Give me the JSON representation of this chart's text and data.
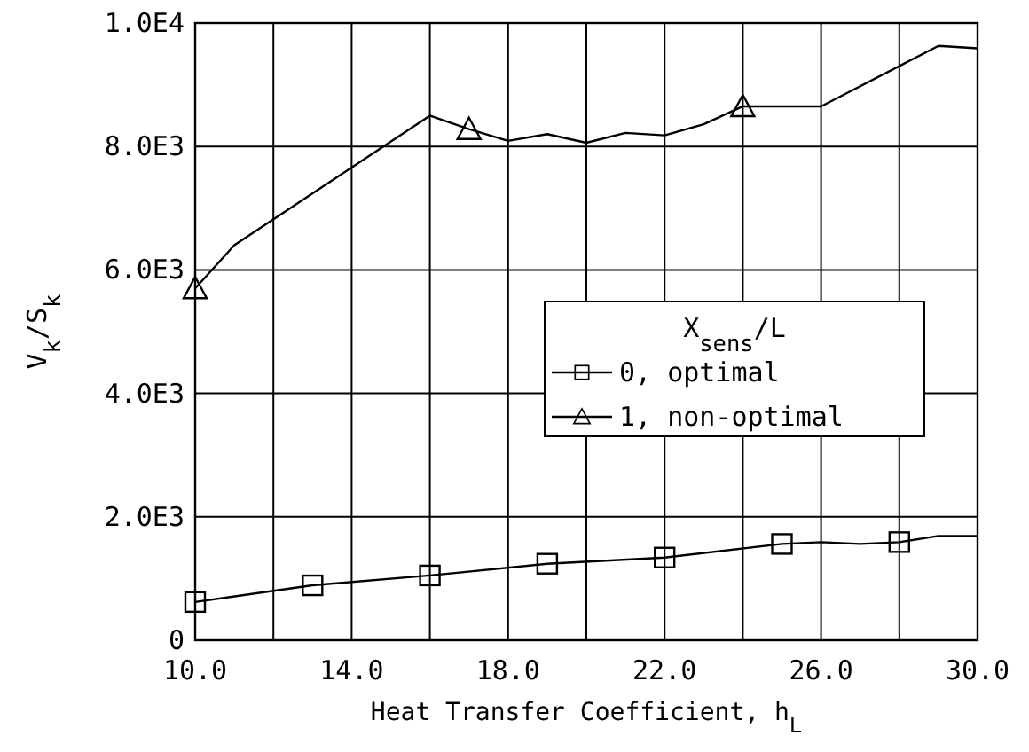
{
  "chart_data": {
    "type": "line",
    "xlabel": "Heat Transfer Coefficient, h$_{L}$",
    "ylabel": "V$_{k}$/S$_{k}$",
    "legend_title": "X$_{sens}$/L",
    "xlim": [
      10,
      30
    ],
    "xticks": [
      {
        "value": 10,
        "label": "10.0"
      },
      {
        "value": 12,
        "label": null
      },
      {
        "value": 14,
        "label": "14.0"
      },
      {
        "value": 16,
        "label": null
      },
      {
        "value": 18,
        "label": "18.0"
      },
      {
        "value": 20,
        "label": null
      },
      {
        "value": 22,
        "label": "22.0"
      },
      {
        "value": 24,
        "label": null
      },
      {
        "value": 26,
        "label": "26.0"
      },
      {
        "value": 28,
        "label": null
      },
      {
        "value": 30,
        "label": "30.0"
      }
    ],
    "ylim": [
      0,
      10000
    ],
    "yticks": [
      0,
      {
        "value": 2000,
        "label": "2.0E3"
      },
      {
        "value": 4000,
        "label": "4.0E3"
      },
      {
        "value": 6000,
        "label": "6.0E3"
      },
      {
        "value": 8000,
        "label": "8.0E3"
      },
      {
        "value": 10000,
        "label": "1.0E4"
      }
    ],
    "grid": true,
    "legend": "center right",
    "line_style": "solid",
    "series": [
      {
        "name": "0, optimal",
        "color": "#000000",
        "x": [
          10,
          13,
          16,
          19,
          22,
          25,
          26,
          27,
          28,
          29,
          30
        ],
        "values": [
          620,
          890,
          1050,
          1240,
          1340,
          1560,
          1590,
          1560,
          1590,
          1690,
          1690
        ]
      },
      {
        "name": "1, non-optimal",
        "color": "#000000",
        "x": [
          10,
          11,
          16,
          17,
          18,
          19,
          20,
          21,
          22,
          23,
          24,
          26,
          29,
          30
        ],
        "values": [
          5700,
          6400,
          8500,
          8280,
          8090,
          8200,
          8060,
          8220,
          8180,
          8360,
          8650,
          8650,
          9630,
          9590
        ]
      },
      {
        "type": "scatter",
        "marker": "square",
        "color": "#000000",
        "x": [
          10,
          13,
          16,
          19,
          22,
          25,
          28
        ],
        "values": [
          620,
          890,
          1050,
          1240,
          1340,
          1560,
          1590
        ]
      },
      {
        "type": "scatter",
        "marker": "triangle",
        "color": "#000000",
        "x": [
          10,
          17,
          24
        ],
        "values": [
          5700,
          8280,
          8650
        ]
      }
    ]
  }
}
